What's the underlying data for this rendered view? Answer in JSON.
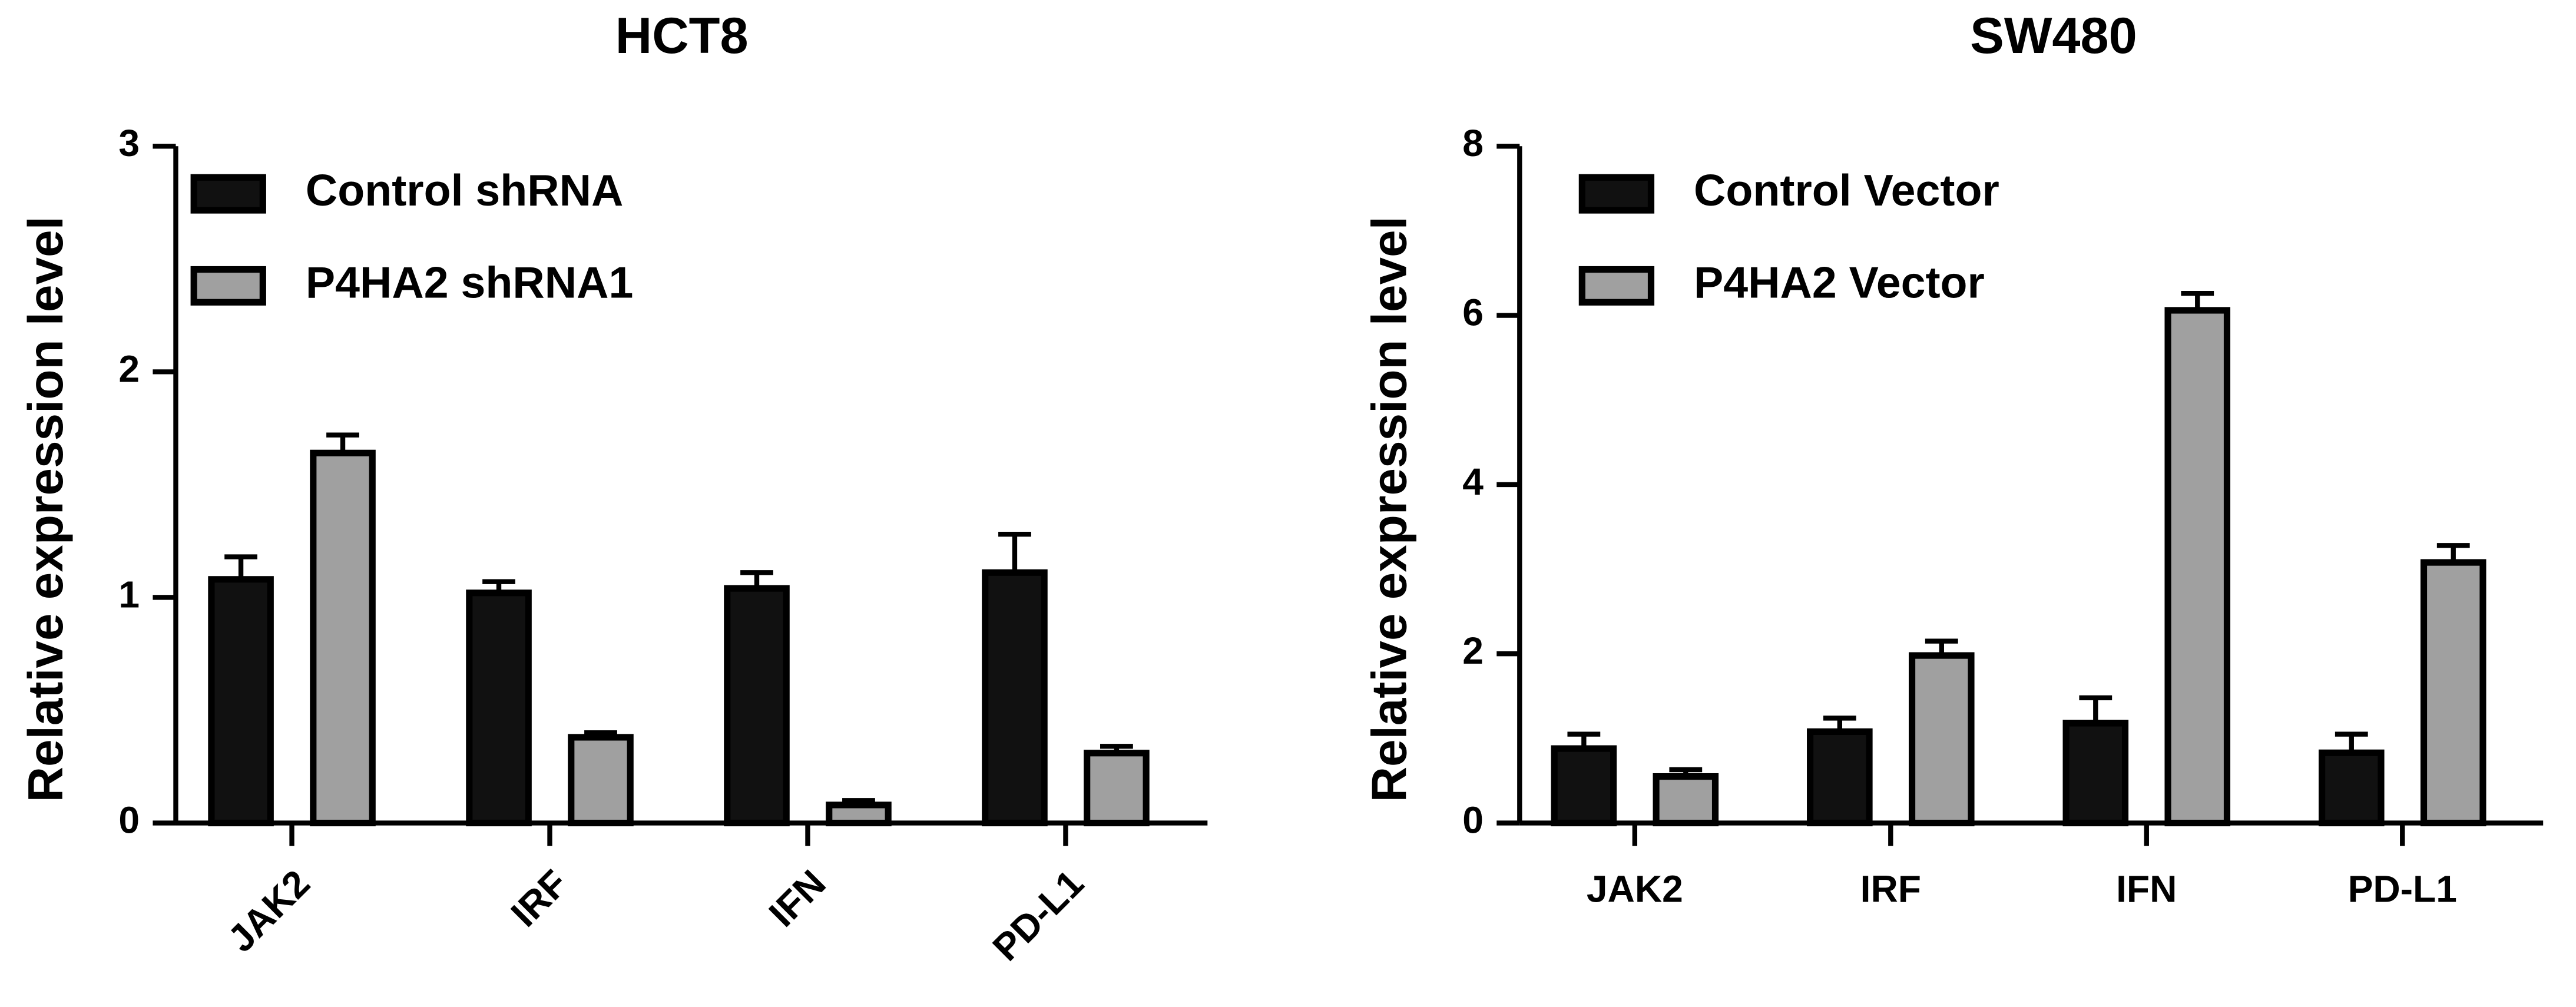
{
  "chart_data": [
    {
      "type": "bar",
      "title": "HCT8",
      "ylabel": "Relative expression level",
      "categories": [
        "JAK2",
        "IRF",
        "IFN",
        "PD-L1"
      ],
      "series": [
        {
          "name": "Control shRNA",
          "color": "#111111",
          "values": [
            1.08,
            1.02,
            1.04,
            1.11
          ],
          "errors": [
            0.1,
            0.05,
            0.07,
            0.17
          ]
        },
        {
          "name": "P4HA2 shRNA1",
          "color": "#a0a0a0",
          "values": [
            1.64,
            0.38,
            0.08,
            0.31
          ],
          "errors": [
            0.08,
            0.02,
            0.02,
            0.03
          ]
        }
      ],
      "ylim": [
        0,
        3
      ],
      "yticks": [
        0,
        1,
        2,
        3
      ],
      "xtick_rotation": -45
    },
    {
      "type": "bar",
      "title": "SW480",
      "ylabel": "Relative expression level",
      "categories": [
        "JAK2",
        "IRF",
        "IFN",
        "PD-L1"
      ],
      "series": [
        {
          "name": "Control Vector",
          "color": "#111111",
          "values": [
            0.88,
            1.08,
            1.18,
            0.83
          ],
          "errors": [
            0.17,
            0.16,
            0.3,
            0.22
          ]
        },
        {
          "name": "P4HA2 Vector",
          "color": "#a0a0a0",
          "values": [
            0.55,
            1.98,
            6.06,
            3.08
          ],
          "errors": [
            0.08,
            0.17,
            0.2,
            0.2
          ]
        }
      ],
      "ylim": [
        0,
        8
      ],
      "yticks": [
        0,
        2,
        4,
        6,
        8
      ],
      "xtick_rotation": 0
    }
  ]
}
